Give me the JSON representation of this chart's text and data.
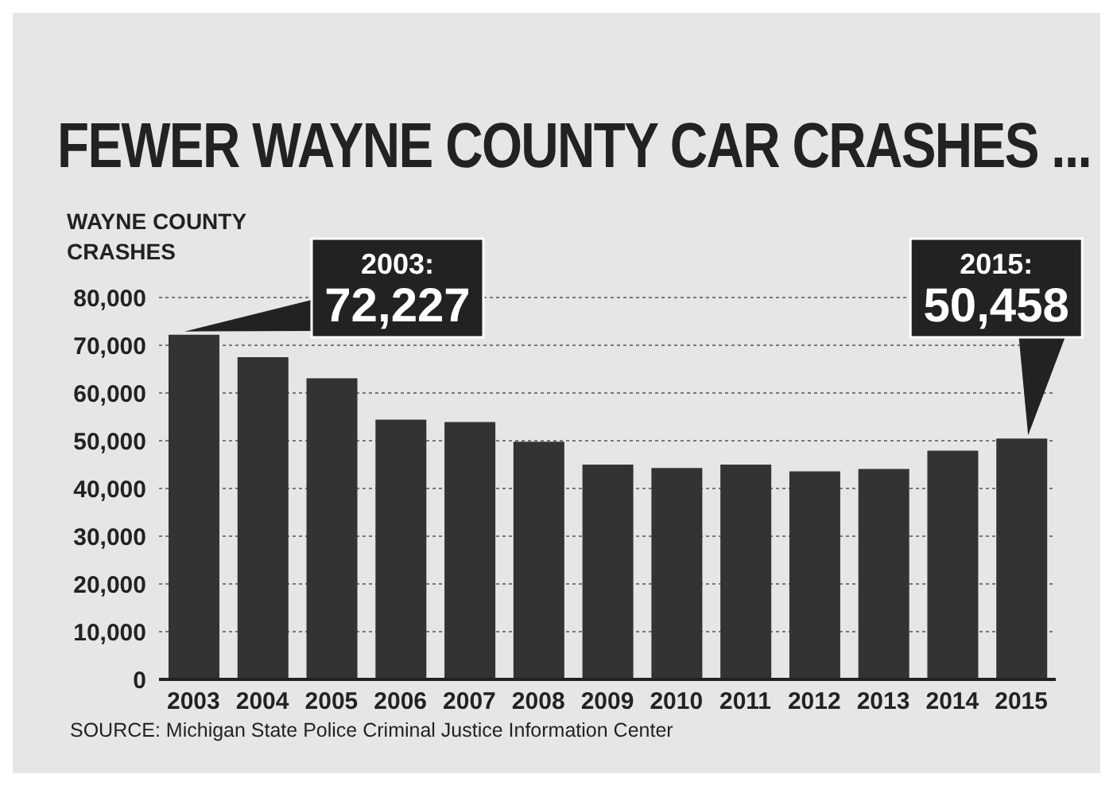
{
  "chart_data": {
    "type": "bar",
    "title": "FEWER WAYNE COUNTY CAR CRASHES ...",
    "ylabel": "WAYNE COUNTY\nCRASHES",
    "categories": [
      "2003",
      "2004",
      "2005",
      "2006",
      "2007",
      "2008",
      "2009",
      "2010",
      "2011",
      "2012",
      "2013",
      "2014",
      "2015"
    ],
    "values": [
      72227,
      67500,
      63100,
      54400,
      53900,
      49800,
      45000,
      44300,
      45000,
      43600,
      44100,
      47900,
      50458
    ],
    "color": "#333333",
    "ylim": [
      0,
      80000
    ],
    "yticks": [
      0,
      {
        "value": 10000,
        "label": "10,000"
      },
      {
        "value": 20000,
        "label": "20,000"
      },
      {
        "value": 30000,
        "label": "30,000"
      },
      {
        "value": 40000,
        "label": "40,000"
      },
      {
        "value": 50000,
        "label": "50,000"
      },
      {
        "value": 60000,
        "label": "60,000"
      },
      {
        "value": 70000,
        "label": "70,000"
      },
      {
        "value": 80000,
        "label": "80,000"
      }
    ],
    "grid": "y",
    "legend": false,
    "annotations": [
      {
        "text": "2003: 72,227",
        "x": "2003",
        "y": 72227
      },
      {
        "text": "2015: 50,458",
        "x": "2015",
        "y": 50458
      },
      "SOURCE: Michigan State Police Criminal Justice Information Center"
    ]
  }
}
